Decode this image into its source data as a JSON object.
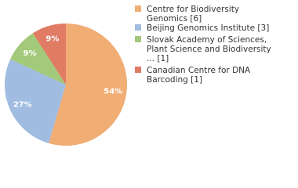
{
  "chart_data": {
    "type": "pie",
    "categories": [
      "Centre for Biodiversity Genomics [6]",
      "Beijing Genomics Institute [3]",
      "Slovak Academy of Sciences, Plant Science and Biodiversity ... [1]",
      "Canadian Centre for DNA Barcoding [1]"
    ],
    "values": [
      54,
      27,
      9,
      9
    ],
    "value_labels": [
      "54%",
      "27%",
      "9%",
      "9%"
    ],
    "colors": [
      "#f0ad74",
      "#a0bce0",
      "#a3c97a",
      "#e07b64"
    ]
  }
}
